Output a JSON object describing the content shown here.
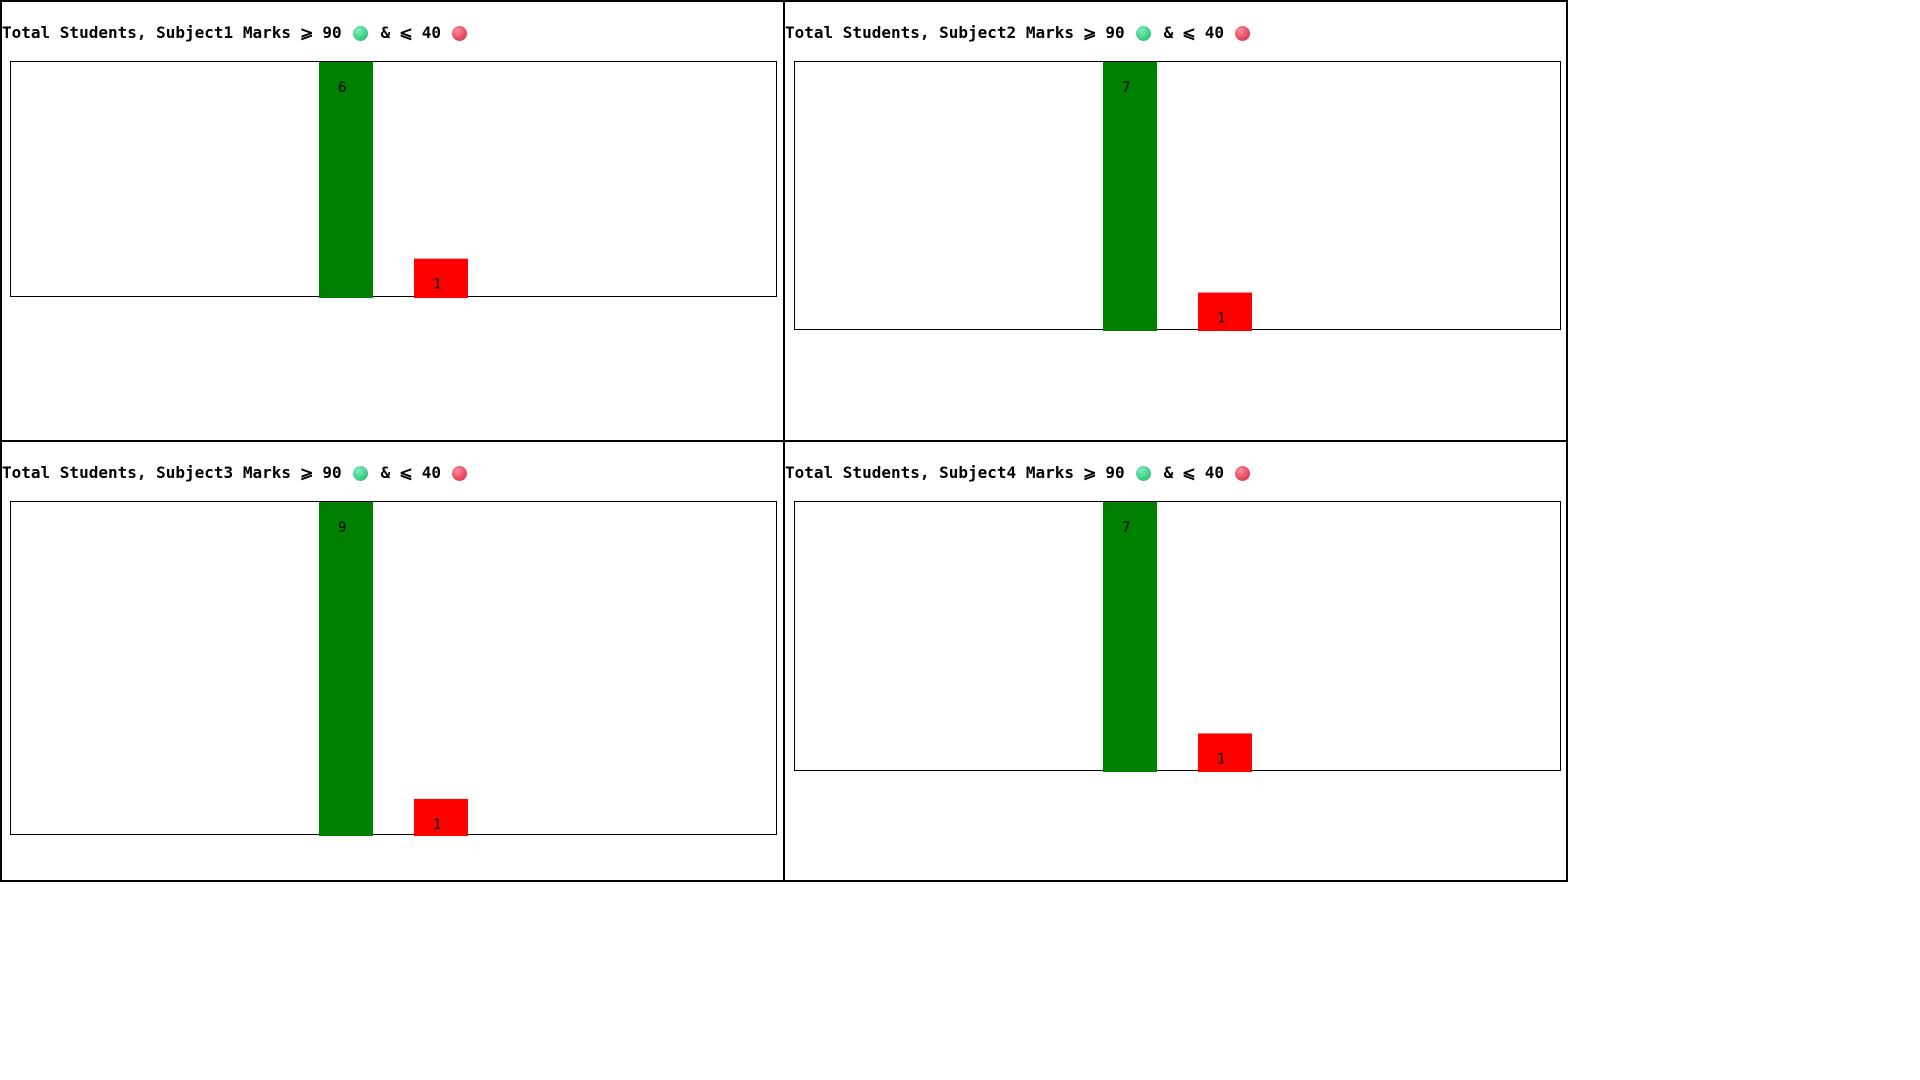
{
  "colors": {
    "high": "#008000",
    "low": "#ff0000",
    "dot_high_light": "#7ff0b8",
    "dot_high_dark": "#18b069",
    "dot_low_light": "#ff8a9a",
    "dot_low_dark": "#d11f3c"
  },
  "icons": {
    "high": "green-circle-icon",
    "low": "red-circle-icon"
  },
  "chart_data": [
    {
      "type": "bar",
      "title": "Total Students, Subject1 Marks",
      "ge_symbol": "⩾",
      "high_threshold": "90",
      "amp": "&",
      "le_symbol": "⩽",
      "low_threshold": "40",
      "categories": [
        "≥ 90",
        "≤ 40"
      ],
      "values": [
        6,
        1
      ],
      "labels": [
        "6",
        "1"
      ],
      "ylim": [
        0,
        6
      ]
    },
    {
      "type": "bar",
      "title": "Total Students, Subject2 Marks",
      "ge_symbol": "⩾",
      "high_threshold": "90",
      "amp": "&",
      "le_symbol": "⩽",
      "low_threshold": "40",
      "categories": [
        "≥ 90",
        "≤ 40"
      ],
      "values": [
        7,
        1
      ],
      "labels": [
        "7",
        "1"
      ],
      "ylim": [
        0,
        7
      ]
    },
    {
      "type": "bar",
      "title": "Total Students, Subject3 Marks",
      "ge_symbol": "⩾",
      "high_threshold": "90",
      "amp": "&",
      "le_symbol": "⩽",
      "low_threshold": "40",
      "categories": [
        "≥ 90",
        "≤ 40"
      ],
      "values": [
        9,
        1
      ],
      "labels": [
        "9",
        "1"
      ],
      "ylim": [
        0,
        9
      ]
    },
    {
      "type": "bar",
      "title": "Total Students, Subject4 Marks",
      "ge_symbol": "⩾",
      "high_threshold": "90",
      "amp": "&",
      "le_symbol": "⩽",
      "low_threshold": "40",
      "categories": [
        "≥ 90",
        "≤ 40"
      ],
      "values": [
        7,
        1
      ],
      "labels": [
        "7",
        "1"
      ],
      "ylim": [
        0,
        7
      ]
    }
  ]
}
